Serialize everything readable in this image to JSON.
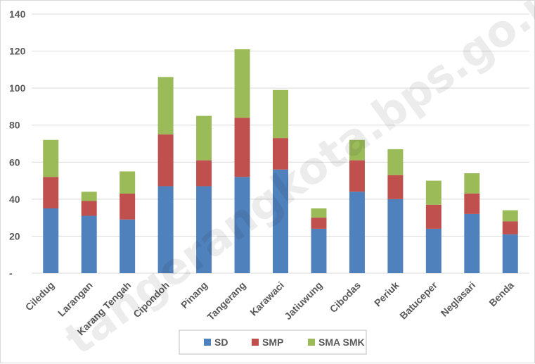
{
  "chart_data": {
    "type": "bar",
    "stacked": true,
    "categories": [
      "Ciledug",
      "Larangan",
      "Karang Tengah",
      "Cipondoh",
      "Pinang",
      "Tangerang",
      "Karawaci",
      "Jatiuwung",
      "Cibodas",
      "Periuk",
      "Batuceper",
      "Neglasari",
      "Benda"
    ],
    "series": [
      {
        "name": "SD",
        "color": "#4f81bd",
        "values": [
          35,
          31,
          29,
          47,
          47,
          52,
          56,
          24,
          44,
          40,
          24,
          32,
          21
        ]
      },
      {
        "name": "SMP",
        "color": "#c0504d",
        "values": [
          17,
          8,
          14,
          28,
          14,
          32,
          17,
          6,
          17,
          13,
          13,
          11,
          7
        ]
      },
      {
        "name": "SMA SMK",
        "color": "#9bbb59",
        "values": [
          20,
          5,
          12,
          31,
          24,
          37,
          26,
          5,
          11,
          14,
          13,
          11,
          6
        ]
      }
    ],
    "ylim": [
      0,
      140
    ],
    "yticks": [
      {
        "value": 0,
        "label": "-"
      },
      {
        "value": 20,
        "label": "20"
      },
      {
        "value": 40,
        "label": "40"
      },
      {
        "value": 60,
        "label": "60"
      },
      {
        "value": 80,
        "label": "80"
      },
      {
        "value": 100,
        "label": "100"
      },
      {
        "value": 120,
        "label": "120"
      },
      {
        "value": 140,
        "label": "140"
      }
    ],
    "grid": true,
    "legend_position": "bottom",
    "title": "",
    "xlabel": "",
    "ylabel": ""
  },
  "watermark": "tangerangkota.bps.go.id"
}
